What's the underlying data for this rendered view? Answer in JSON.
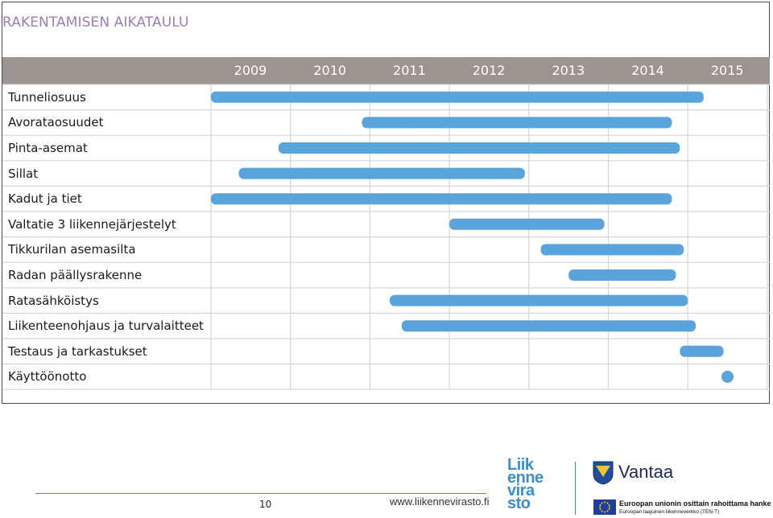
{
  "chart_data": {
    "type": "gantt",
    "title": "RAKENTAMISEN AIKATAULU",
    "x_axis": {
      "min": 2009,
      "max": 2016,
      "ticks": [
        "2009",
        "2010",
        "2011",
        "2012",
        "2013",
        "2014",
        "2015"
      ]
    },
    "grid": true,
    "bar_color": "#5aa4de",
    "header_color": "#9c9491",
    "tasks": [
      {
        "label": "Tunneliosuus",
        "start": 2009.0,
        "end": 2015.2
      },
      {
        "label": "Avorataosuudet",
        "start": 2010.9,
        "end": 2014.8
      },
      {
        "label": "Pinta-asemat",
        "start": 2009.85,
        "end": 2014.9
      },
      {
        "label": "Sillat",
        "start": 2009.35,
        "end": 2012.95
      },
      {
        "label": "Kadut ja tiet",
        "start": 2009.0,
        "end": 2014.8
      },
      {
        "label": "Valtatie 3 liikennejärjestelyt",
        "start": 2012.0,
        "end": 2013.95
      },
      {
        "label": "Tikkurilan asemasilta",
        "start": 2013.15,
        "end": 2014.95
      },
      {
        "label": "Radan päällysrakenne",
        "start": 2013.5,
        "end": 2014.85
      },
      {
        "label": "Ratasähköistys",
        "start": 2011.25,
        "end": 2015.0
      },
      {
        "label": "Liikenteenohjaus ja turvalaitteet",
        "start": 2011.4,
        "end": 2015.1
      },
      {
        "label": "Testaus ja tarkastukset",
        "start": 2014.9,
        "end": 2015.45
      },
      {
        "label": "Käyttöönotto",
        "start": 2015.45,
        "end": 2015.55,
        "milestone": true
      }
    ]
  },
  "footer": {
    "page_number": "10",
    "url": "www.liikennevirasto.fi",
    "logo_liikennevirasto": [
      "Liik",
      "enne",
      "vira",
      "sto"
    ],
    "logo_vantaa": "Vantaa",
    "eu_text_1": "Euroopan unionin osittain rahoittama hanke",
    "eu_text_2": "Euroopan laajuinen liikenneverkko (TEN-T)"
  }
}
